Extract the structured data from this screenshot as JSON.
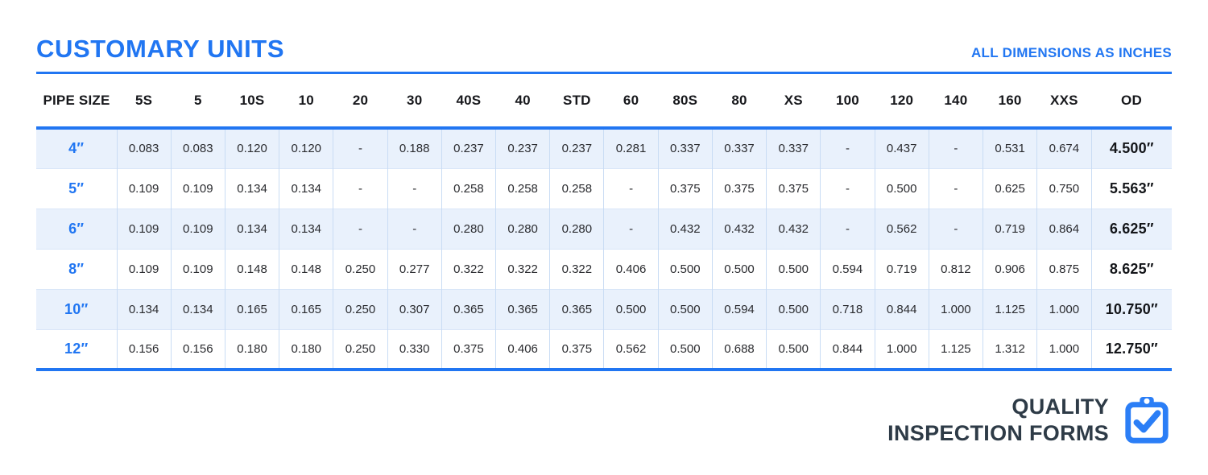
{
  "header": {
    "title": "CUSTOMARY UNITS",
    "note": "ALL DIMENSIONS AS INCHES"
  },
  "table": {
    "columns": [
      "PIPE SIZE",
      "5S",
      "5",
      "10S",
      "10",
      "20",
      "30",
      "40S",
      "40",
      "STD",
      "60",
      "80S",
      "80",
      "XS",
      "100",
      "120",
      "140",
      "160",
      "XXS",
      "OD"
    ],
    "rows": [
      {
        "pipe_size": "4″",
        "values": [
          "0.083",
          "0.083",
          "0.120",
          "0.120",
          "-",
          "0.188",
          "0.237",
          "0.237",
          "0.237",
          "0.281",
          "0.337",
          "0.337",
          "0.337",
          "-",
          "0.437",
          "-",
          "0.531",
          "0.674"
        ],
        "od": "4.500″"
      },
      {
        "pipe_size": "5″",
        "values": [
          "0.109",
          "0.109",
          "0.134",
          "0.134",
          "-",
          "-",
          "0.258",
          "0.258",
          "0.258",
          "-",
          "0.375",
          "0.375",
          "0.375",
          "-",
          "0.500",
          "-",
          "0.625",
          "0.750"
        ],
        "od": "5.563″"
      },
      {
        "pipe_size": "6″",
        "values": [
          "0.109",
          "0.109",
          "0.134",
          "0.134",
          "-",
          "-",
          "0.280",
          "0.280",
          "0.280",
          "-",
          "0.432",
          "0.432",
          "0.432",
          "-",
          "0.562",
          "-",
          "0.719",
          "0.864"
        ],
        "od": "6.625″"
      },
      {
        "pipe_size": "8″",
        "values": [
          "0.109",
          "0.109",
          "0.148",
          "0.148",
          "0.250",
          "0.277",
          "0.322",
          "0.322",
          "0.322",
          "0.406",
          "0.500",
          "0.500",
          "0.500",
          "0.594",
          "0.719",
          "0.812",
          "0.906",
          "0.875"
        ],
        "od": "8.625″"
      },
      {
        "pipe_size": "10″",
        "values": [
          "0.134",
          "0.134",
          "0.165",
          "0.165",
          "0.250",
          "0.307",
          "0.365",
          "0.365",
          "0.365",
          "0.500",
          "0.500",
          "0.594",
          "0.500",
          "0.718",
          "0.844",
          "1.000",
          "1.125",
          "1.000"
        ],
        "od": "10.750″"
      },
      {
        "pipe_size": "12″",
        "values": [
          "0.156",
          "0.156",
          "0.180",
          "0.180",
          "0.250",
          "0.330",
          "0.375",
          "0.406",
          "0.375",
          "0.562",
          "0.500",
          "0.688",
          "0.500",
          "0.844",
          "1.000",
          "1.125",
          "1.312",
          "1.000"
        ],
        "od": "12.750″"
      }
    ]
  },
  "footer_logo": {
    "line1": "QUALITY",
    "line2": "INSPECTION FORMS",
    "icon": "clipboard-check-icon"
  },
  "colors": {
    "accent": "#2176f2",
    "icon_blue": "#2b7ef6",
    "row_stripe": "#e9f1fc",
    "grid_line": "#c9dcf4",
    "logo_text": "#2e3b47"
  }
}
